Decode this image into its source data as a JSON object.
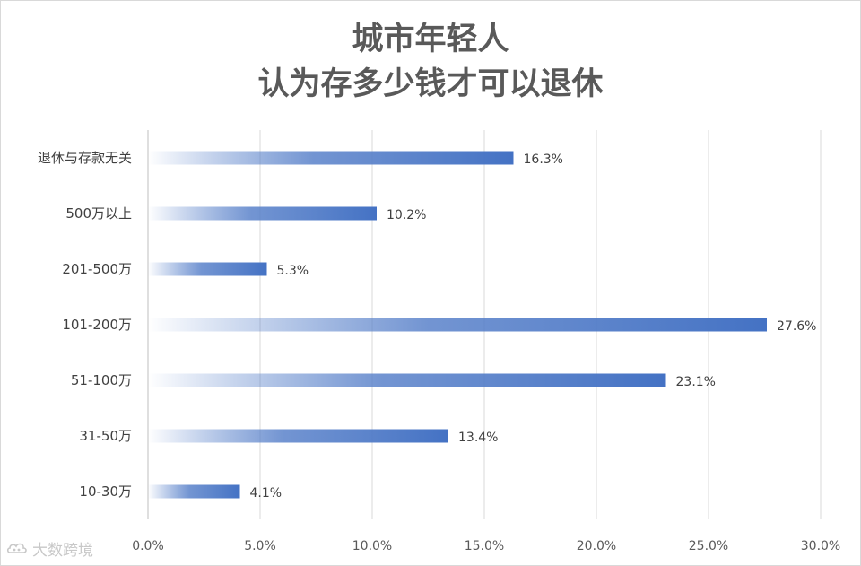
{
  "chart_data": {
    "type": "bar",
    "orientation": "horizontal",
    "title_lines": [
      "城市年轻人",
      "认为存多少钱才可以退休"
    ],
    "categories": [
      "退休与存款无关",
      "500万以上",
      "201-500万",
      "101-200万",
      "51-100万",
      "31-50万",
      "10-30万"
    ],
    "values": [
      16.3,
      10.2,
      5.3,
      27.6,
      23.1,
      13.4,
      4.1
    ],
    "value_labels": [
      "16.3%",
      "10.2%",
      "5.3%",
      "27.6%",
      "23.1%",
      "13.4%",
      "4.1%"
    ],
    "x_ticks": [
      0,
      5,
      10,
      15,
      20,
      25,
      30
    ],
    "x_tick_labels": [
      "0.0%",
      "5.0%",
      "10.0%",
      "15.0%",
      "20.0%",
      "25.0%",
      "30.0%"
    ],
    "xlim": [
      0,
      30
    ],
    "grid": true,
    "bar_color": "#4472c4",
    "bar_fill": "gradient from transparent (left) to solid blue (right)"
  },
  "watermark": {
    "icon": "cloud-logo-icon",
    "text": "大数跨境"
  }
}
